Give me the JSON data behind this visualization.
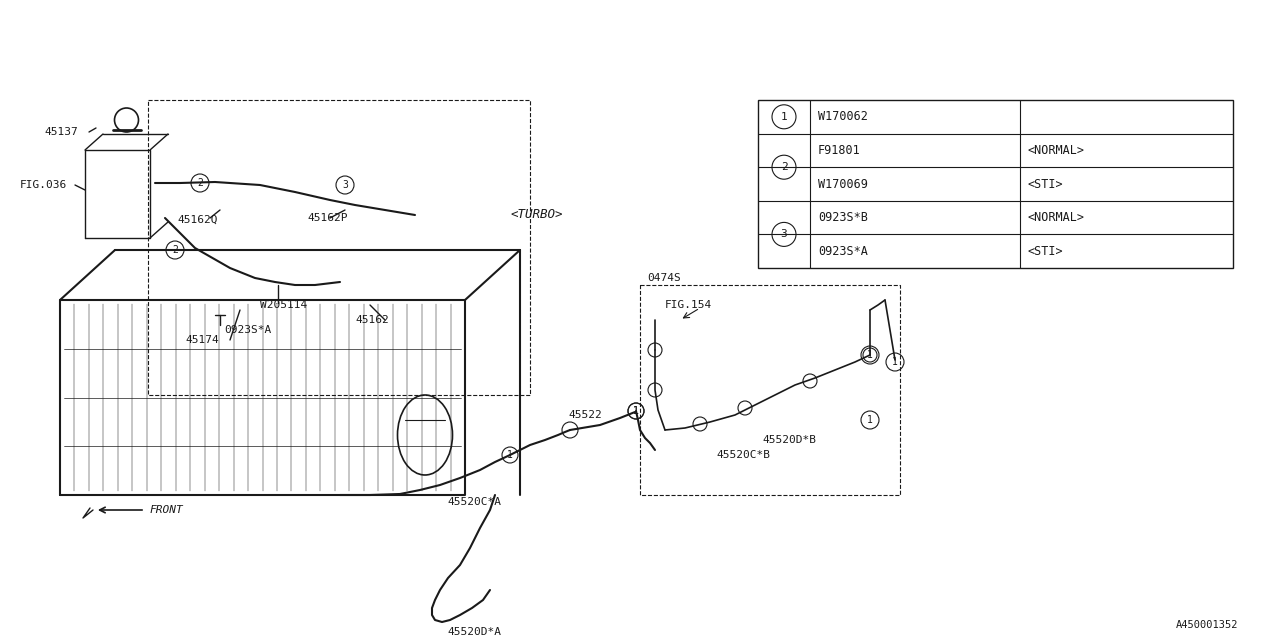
{
  "bg_color": "#ffffff",
  "line_color": "#1a1a1a",
  "fig_width": 12.8,
  "fig_height": 6.4,
  "dpi": 100,
  "legend_rows": [
    {
      "circle": "1",
      "part": "W170062",
      "variant": "",
      "span_start": true,
      "span_end": true
    },
    {
      "circle": "2",
      "part": "F91801",
      "variant": "<NORMAL>",
      "span_start": true,
      "span_end": false
    },
    {
      "circle": "2",
      "part": "W170069",
      "variant": "<STI>",
      "span_start": false,
      "span_end": true
    },
    {
      "circle": "3",
      "part": "0923S*B",
      "variant": "<NORMAL>",
      "span_start": true,
      "span_end": false
    },
    {
      "circle": "3",
      "part": "0923S*A",
      "variant": "<STI>",
      "span_start": false,
      "span_end": true
    }
  ]
}
